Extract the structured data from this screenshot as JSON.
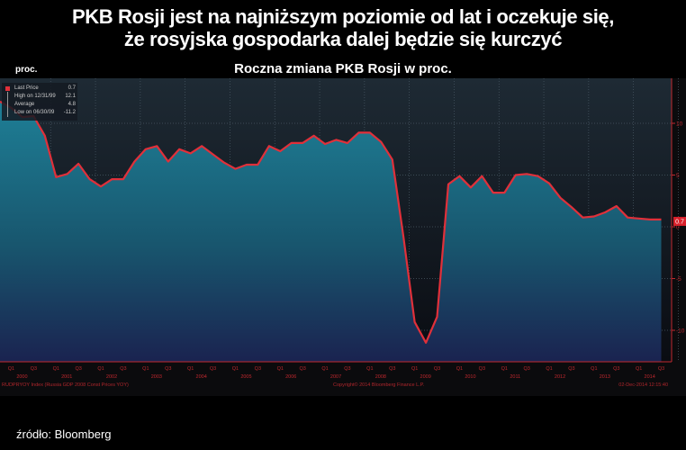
{
  "header": {
    "title_line1": "PKB Rosji jest na najniższym poziomie od lat i oczekuje się,",
    "title_line2": "że rosyjska gospodarka dalej będzie się kurczyć",
    "subtitle": "Roczna zmiana PKB Rosji w proc.",
    "unit": "proc."
  },
  "legend": {
    "items": [
      {
        "label": "Last Price",
        "value": "0.7"
      },
      {
        "label": "High on 12/31/99",
        "value": "12.1"
      },
      {
        "label": "Average",
        "value": "4.8"
      },
      {
        "label": "Low on 06/30/09",
        "value": "-11.2"
      }
    ]
  },
  "footer": {
    "ticker": "RUDPRYOY Index (Russia GDP 2008 Const Prices YOY)",
    "copyright": "Copyright© 2014 Bloomberg Finance L.P.",
    "timestamp": "02-Dec-2014 12:15:40",
    "source": "źródło: Bloomberg"
  },
  "last_value_badge": "0.7",
  "colors": {
    "line": "#e0303a",
    "fill_top": "#1e7f96",
    "fill_bottom": "#1a2350",
    "axis": "#c0282e",
    "background": "#000000"
  },
  "chart_data": {
    "type": "area",
    "title": "Roczna zmiana PKB Rosji w proc.",
    "xlabel": "",
    "ylabel": "proc.",
    "ylim": [
      -12,
      14.5
    ],
    "yticks": [
      -10,
      -5,
      0,
      5,
      10
    ],
    "grid": true,
    "legend_position": "top-left",
    "x_years": [
      "2000",
      "2001",
      "2002",
      "2003",
      "2004",
      "2005",
      "2006",
      "2007",
      "2008",
      "2009",
      "2010",
      "2011",
      "2012",
      "2013",
      "2014"
    ],
    "x_quarter_ticks": [
      "Q1",
      "Q3"
    ],
    "x": [
      "1999Q4",
      "2000Q1",
      "2000Q2",
      "2000Q3",
      "2000Q4",
      "2001Q1",
      "2001Q2",
      "2001Q3",
      "2001Q4",
      "2002Q1",
      "2002Q2",
      "2002Q3",
      "2002Q4",
      "2003Q1",
      "2003Q2",
      "2003Q3",
      "2003Q4",
      "2004Q1",
      "2004Q2",
      "2004Q3",
      "2004Q4",
      "2005Q1",
      "2005Q2",
      "2005Q3",
      "2005Q4",
      "2006Q1",
      "2006Q2",
      "2006Q3",
      "2006Q4",
      "2007Q1",
      "2007Q2",
      "2007Q3",
      "2007Q4",
      "2008Q1",
      "2008Q2",
      "2008Q3",
      "2008Q4",
      "2009Q1",
      "2009Q2",
      "2009Q3",
      "2009Q4",
      "2010Q1",
      "2010Q2",
      "2010Q3",
      "2010Q4",
      "2011Q1",
      "2011Q2",
      "2011Q3",
      "2011Q4",
      "2012Q1",
      "2012Q2",
      "2012Q3",
      "2012Q4",
      "2013Q1",
      "2013Q2",
      "2013Q3",
      "2013Q4",
      "2014Q1",
      "2014Q2",
      "2014Q3"
    ],
    "series": [
      {
        "name": "Russia GDP YoY",
        "values": [
          12.1,
          11.5,
          10.6,
          10.7,
          8.8,
          4.8,
          5.1,
          6.1,
          4.6,
          3.9,
          4.6,
          4.6,
          6.3,
          7.5,
          7.8,
          6.3,
          7.5,
          7.1,
          7.8,
          7.0,
          6.2,
          5.6,
          6.0,
          6.0,
          7.8,
          7.3,
          8.1,
          8.1,
          8.8,
          8.0,
          8.4,
          8.1,
          9.1,
          9.1,
          8.2,
          6.5,
          -1.0,
          -9.2,
          -11.2,
          -8.7,
          4.1,
          4.9,
          3.8,
          4.9,
          3.3,
          3.3,
          5.0,
          5.1,
          4.9,
          4.2,
          2.8,
          1.9,
          0.9,
          1.0,
          1.4,
          2.0,
          0.9,
          0.8,
          0.7,
          0.7
        ]
      }
    ]
  }
}
